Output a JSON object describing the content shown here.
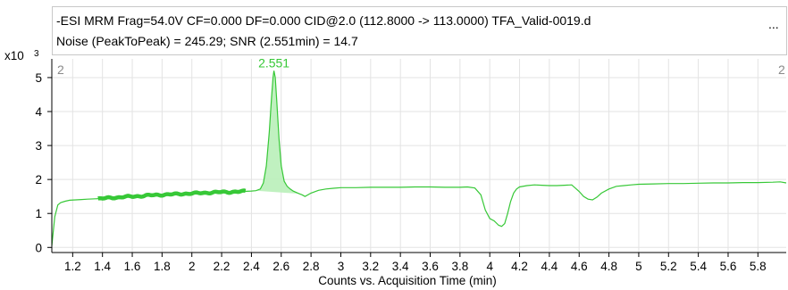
{
  "header": {
    "line1": "-ESI MRM Frag=54.0V CF=0.000 DF=0.000 CID@2.0 (112.8000 -> 113.0000) TFA_Valid-0019.d",
    "line2": "Noise (PeakToPeak) = 245.29; SNR (2.551min) = 14.7",
    "ellipsis": "..."
  },
  "y_multiplier": {
    "base": "x10",
    "exponent": "3"
  },
  "markers": {
    "left": "2",
    "right": "2"
  },
  "colors": {
    "trace": "#37c837",
    "peak_fill": "#b9efb9",
    "noise_band": "#37c837",
    "grid": "#e3e3e3",
    "axis": "#000000"
  },
  "chart_data": {
    "type": "line",
    "title": "",
    "xlabel": "Counts vs. Acquisition Time (min)",
    "ylabel": "",
    "xlim": [
      1.06,
      5.99
    ],
    "ylim": [
      -0.15,
      5.55
    ],
    "x_ticks": [
      1.2,
      1.4,
      1.6,
      1.8,
      2,
      2.2,
      2.4,
      2.6,
      2.8,
      3,
      3.2,
      3.4,
      3.6,
      3.8,
      4,
      4.2,
      4.4,
      4.6,
      4.8,
      5,
      5.2,
      5.4,
      5.6,
      5.8
    ],
    "x_tick_labels": [
      "1.2",
      "1.4",
      "1.6",
      "1.8",
      "2",
      "2.2",
      "2.4",
      "2.6",
      "2.8",
      "3",
      "3.2",
      "3.4",
      "3.6",
      "3.8",
      "4",
      "4.2",
      "4.4",
      "4.6",
      "4.8",
      "5",
      "5.2",
      "5.4",
      "5.6",
      "5.8"
    ],
    "y_ticks": [
      0,
      1,
      2,
      3,
      4,
      5
    ],
    "y_tick_labels": [
      "0",
      "1",
      "2",
      "3",
      "4",
      "5"
    ],
    "grid": true,
    "series": [
      {
        "x": [
          1.06,
          1.08,
          1.1,
          1.12,
          1.15,
          1.18,
          1.22,
          1.26,
          1.3,
          1.35,
          1.4,
          1.45,
          1.5,
          1.55,
          1.6,
          1.65,
          1.7,
          1.75,
          1.8,
          1.85,
          1.9,
          1.95,
          2.0,
          2.05,
          2.1,
          2.15,
          2.2,
          2.25,
          2.3,
          2.35,
          2.4,
          2.43,
          2.46,
          2.48,
          2.5,
          2.52,
          2.535,
          2.545,
          2.551,
          2.56,
          2.57,
          2.585,
          2.6,
          2.62,
          2.64,
          2.66,
          2.68,
          2.7,
          2.72,
          2.74,
          2.76,
          2.8,
          2.85,
          2.9,
          2.95,
          3.0,
          3.1,
          3.2,
          3.3,
          3.4,
          3.5,
          3.6,
          3.7,
          3.8,
          3.85,
          3.9,
          3.94,
          3.97,
          4.0,
          4.03,
          4.06,
          4.08,
          4.1,
          4.12,
          4.14,
          4.16,
          4.18,
          4.2,
          4.25,
          4.3,
          4.35,
          4.4,
          4.45,
          4.5,
          4.55,
          4.6,
          4.63,
          4.66,
          4.69,
          4.72,
          4.75,
          4.8,
          4.85,
          4.9,
          4.95,
          5.0,
          5.1,
          5.2,
          5.3,
          5.4,
          5.5,
          5.6,
          5.7,
          5.8,
          5.9,
          5.95,
          5.99
        ],
        "y": [
          0.05,
          0.9,
          1.25,
          1.32,
          1.36,
          1.39,
          1.4,
          1.41,
          1.42,
          1.43,
          1.44,
          1.46,
          1.47,
          1.49,
          1.5,
          1.51,
          1.53,
          1.54,
          1.55,
          1.56,
          1.57,
          1.58,
          1.59,
          1.6,
          1.61,
          1.62,
          1.63,
          1.63,
          1.64,
          1.65,
          1.66,
          1.67,
          1.72,
          1.9,
          2.4,
          3.4,
          4.4,
          5.0,
          5.2,
          5.0,
          4.3,
          3.2,
          2.4,
          1.95,
          1.8,
          1.72,
          1.66,
          1.62,
          1.58,
          1.55,
          1.5,
          1.6,
          1.68,
          1.72,
          1.74,
          1.76,
          1.76,
          1.77,
          1.77,
          1.77,
          1.78,
          1.78,
          1.77,
          1.77,
          1.78,
          1.75,
          1.55,
          1.1,
          0.85,
          0.78,
          0.65,
          0.62,
          0.7,
          1.0,
          1.35,
          1.6,
          1.72,
          1.78,
          1.82,
          1.84,
          1.83,
          1.82,
          1.82,
          1.83,
          1.84,
          1.65,
          1.5,
          1.42,
          1.4,
          1.48,
          1.6,
          1.72,
          1.8,
          1.82,
          1.84,
          1.86,
          1.87,
          1.88,
          1.88,
          1.89,
          1.9,
          1.9,
          1.91,
          1.91,
          1.92,
          1.93,
          1.9
        ]
      }
    ],
    "noise_region": {
      "x_start": 1.37,
      "x_end": 2.36
    },
    "peak": {
      "label": "2.551",
      "rt": 2.551,
      "x_start": 2.43,
      "x_end": 2.72
    }
  }
}
